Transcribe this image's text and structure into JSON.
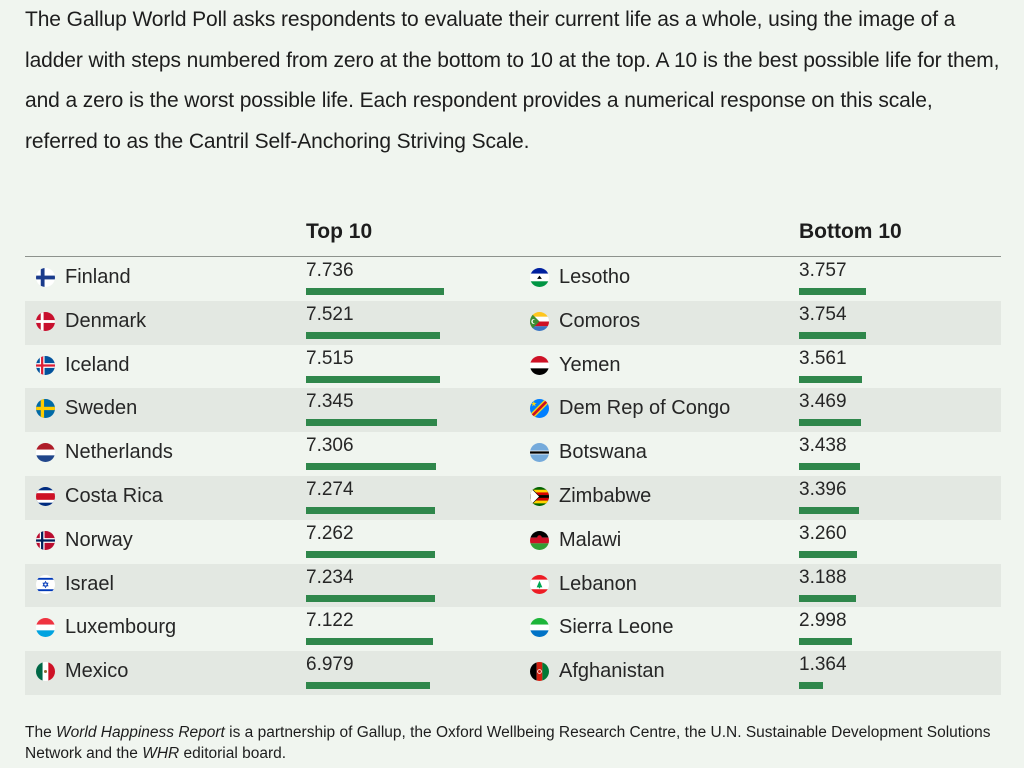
{
  "intro_text": "The Gallup World Poll asks respondents to evaluate their current life as a whole, using the image of a ladder with steps numbered from zero at the bottom to 10 at the top. A 10 is the best possible life for them, and a zero is the worst possible life. Each respondent provides a numerical response on this scale, referred to as the Cantril Self-Anchoring Striving Scale.",
  "colors": {
    "bar": "#2f874b",
    "background": "#f0f5ef",
    "stripe": "#e3e8e2"
  },
  "chart_data": {
    "type": "bar",
    "scale_max": 10,
    "groups": [
      {
        "label": "Top 10",
        "rows": [
          {
            "country": "Finland",
            "value": "7.736",
            "flag": "finland-flag-icon"
          },
          {
            "country": "Denmark",
            "value": "7.521",
            "flag": "denmark-flag-icon"
          },
          {
            "country": "Iceland",
            "value": "7.515",
            "flag": "iceland-flag-icon"
          },
          {
            "country": "Sweden",
            "value": "7.345",
            "flag": "sweden-flag-icon"
          },
          {
            "country": "Netherlands",
            "value": "7.306",
            "flag": "netherlands-flag-icon"
          },
          {
            "country": "Costa Rica",
            "value": "7.274",
            "flag": "costa-rica-flag-icon"
          },
          {
            "country": "Norway",
            "value": "7.262",
            "flag": "norway-flag-icon"
          },
          {
            "country": "Israel",
            "value": "7.234",
            "flag": "israel-flag-icon"
          },
          {
            "country": "Luxembourg",
            "value": "7.122",
            "flag": "luxembourg-flag-icon"
          },
          {
            "country": "Mexico",
            "value": "6.979",
            "flag": "mexico-flag-icon"
          }
        ]
      },
      {
        "label": "Bottom 10",
        "rows": [
          {
            "country": "Lesotho",
            "value": "3.757",
            "flag": "lesotho-flag-icon"
          },
          {
            "country": "Comoros",
            "value": "3.754",
            "flag": "comoros-flag-icon"
          },
          {
            "country": "Yemen",
            "value": "3.561",
            "flag": "yemen-flag-icon"
          },
          {
            "country": "Dem Rep of Congo",
            "value": "3.469",
            "flag": "dr-congo-flag-icon"
          },
          {
            "country": "Botswana",
            "value": "3.438",
            "flag": "botswana-flag-icon"
          },
          {
            "country": "Zimbabwe",
            "value": "3.396",
            "flag": "zimbabwe-flag-icon"
          },
          {
            "country": "Malawi",
            "value": "3.260",
            "flag": "malawi-flag-icon"
          },
          {
            "country": "Lebanon",
            "value": "3.188",
            "flag": "lebanon-flag-icon"
          },
          {
            "country": "Sierra Leone",
            "value": "2.998",
            "flag": "sierra-leone-flag-icon"
          },
          {
            "country": "Afghanistan",
            "value": "1.364",
            "flag": "afghanistan-flag-icon"
          }
        ]
      }
    ]
  },
  "footer": {
    "part1": "The ",
    "report_name": "World Happiness Report",
    "part2": " is a partnership of Gallup, the Oxford Wellbeing Research Centre, the U.N. Sustainable Development Solutions Network and the ",
    "board_name": "WHR",
    "part3": " editorial board."
  }
}
